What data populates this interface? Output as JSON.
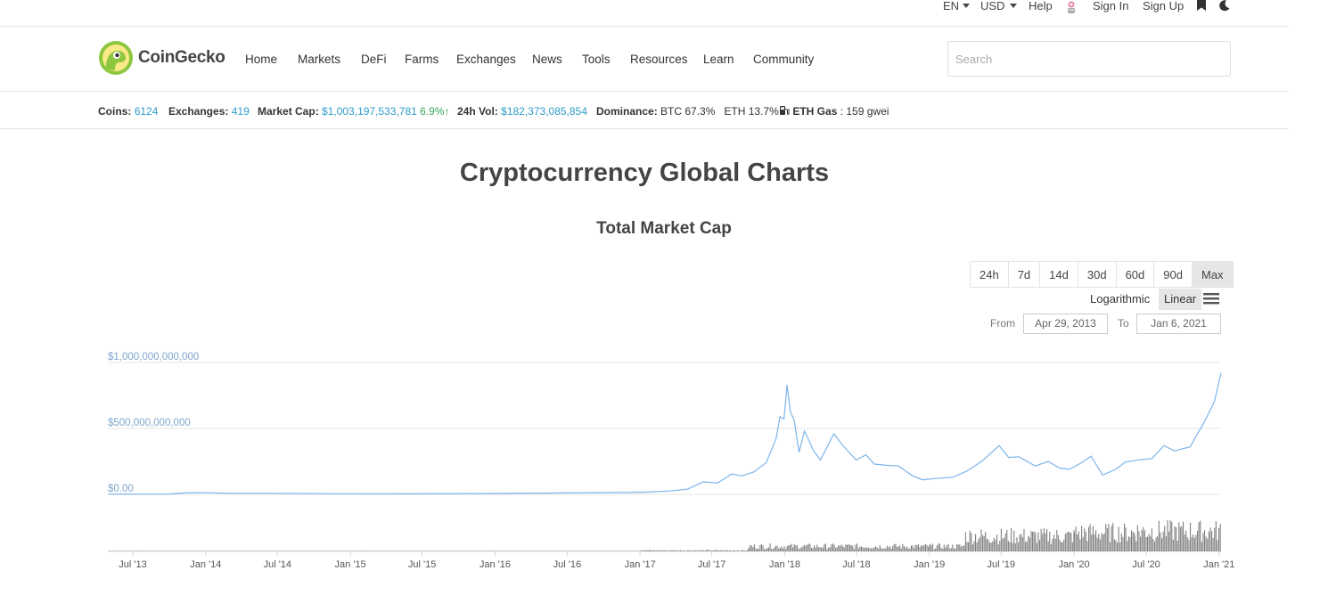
{
  "topbar": {
    "language": "EN",
    "currency": "USD",
    "help": "Help",
    "sign_in": "Sign In",
    "sign_up": "Sign Up"
  },
  "header": {
    "brand": "CoinGecko",
    "nav": [
      "Home",
      "Markets",
      "DeFi",
      "Farms",
      "Exchanges",
      "News",
      "Tools",
      "Resources",
      "Learn",
      "Community"
    ],
    "search_placeholder": "Search"
  },
  "stats": {
    "coins_label": "Coins",
    "coins": "6124",
    "exchanges_label": "Exchanges",
    "exchanges": "419",
    "market_cap_label": "Market Cap",
    "market_cap": "$1,003,197,533,781",
    "market_cap_change": "6.9%",
    "vol_label": "24h Vol",
    "vol": "$182,373,085,854",
    "dominance_label": "Dominance",
    "btc_dom": "BTC 67.3%",
    "eth_dom": "ETH 13.7%",
    "gas_label": "ETH Gas",
    "gas": ": 159 gwei"
  },
  "page": {
    "title": "Cryptocurrency Global Charts",
    "chart_title": "Total Market Cap",
    "ranges": [
      "24h",
      "7d",
      "14d",
      "30d",
      "60d",
      "90d",
      "Max"
    ],
    "active_range": "Max",
    "logarithmic": "Logarithmic",
    "linear": "Linear",
    "from_label": "From",
    "from_date": "Apr 29, 2013",
    "to_label": "To",
    "to_date": "Jan 6, 2021"
  },
  "colors": {
    "accent_blue": "#2f9cc9",
    "positive_green": "#3aa35b",
    "line": "#7cb5ec",
    "volume": "#808080"
  },
  "chart_data": {
    "type": "line",
    "title": "Total Market Cap",
    "x_tick_labels": [
      "Jul '13",
      "Jan '14",
      "Jul '14",
      "Jan '15",
      "Jul '15",
      "Jan '16",
      "Jul '16",
      "Jan '17",
      "Jul '17",
      "Jan '18",
      "Jul '18",
      "Jan '19",
      "Jul '19",
      "Jan '20",
      "Jul '20",
      "Jan '21"
    ],
    "y_tick_labels": [
      "$1,000,000,000,000",
      "$500,000,000,000",
      "$0.00"
    ],
    "ylim": [
      0,
      1000000000000
    ],
    "xlim": [
      "2013-04-29",
      "2021-01-06"
    ],
    "grid": true,
    "series": [
      {
        "type": "line",
        "points": [
          [
            "2013-04-29",
            1.5
          ],
          [
            "2013-10-01",
            2.5
          ],
          [
            "2013-11-20",
            13
          ],
          [
            "2014-01-01",
            12
          ],
          [
            "2014-03-01",
            8
          ],
          [
            "2014-06-01",
            8
          ],
          [
            "2014-12-01",
            5
          ],
          [
            "2015-06-01",
            4
          ],
          [
            "2015-12-01",
            6
          ],
          [
            "2016-06-01",
            10
          ],
          [
            "2016-12-01",
            14
          ],
          [
            "2017-01-15",
            17
          ],
          [
            "2017-03-15",
            25
          ],
          [
            "2017-05-01",
            40
          ],
          [
            "2017-06-10",
            95
          ],
          [
            "2017-07-15",
            85
          ],
          [
            "2017-08-20",
            155
          ],
          [
            "2017-09-15",
            140
          ],
          [
            "2017-10-15",
            170
          ],
          [
            "2017-11-15",
            240
          ],
          [
            "2017-12-10",
            420
          ],
          [
            "2017-12-20",
            590
          ],
          [
            "2017-12-30",
            570
          ],
          [
            "2018-01-07",
            830
          ],
          [
            "2018-01-15",
            630
          ],
          [
            "2018-01-25",
            560
          ],
          [
            "2018-02-06",
            320
          ],
          [
            "2018-02-20",
            480
          ],
          [
            "2018-03-15",
            330
          ],
          [
            "2018-04-01",
            260
          ],
          [
            "2018-05-05",
            460
          ],
          [
            "2018-05-25",
            380
          ],
          [
            "2018-06-30",
            260
          ],
          [
            "2018-07-25",
            300
          ],
          [
            "2018-08-15",
            230
          ],
          [
            "2018-09-15",
            220
          ],
          [
            "2018-10-15",
            215
          ],
          [
            "2018-11-20",
            140
          ],
          [
            "2018-12-15",
            110
          ],
          [
            "2019-01-15",
            120
          ],
          [
            "2019-03-01",
            130
          ],
          [
            "2019-04-05",
            175
          ],
          [
            "2019-05-15",
            255
          ],
          [
            "2019-06-26",
            370
          ],
          [
            "2019-07-20",
            280
          ],
          [
            "2019-08-15",
            285
          ],
          [
            "2019-09-25",
            215
          ],
          [
            "2019-10-28",
            250
          ],
          [
            "2019-11-25",
            200
          ],
          [
            "2019-12-20",
            190
          ],
          [
            "2020-01-20",
            240
          ],
          [
            "2020-02-13",
            290
          ],
          [
            "2020-03-13",
            145
          ],
          [
            "2020-04-15",
            190
          ],
          [
            "2020-05-10",
            245
          ],
          [
            "2020-06-20",
            265
          ],
          [
            "2020-07-15",
            270
          ],
          [
            "2020-08-15",
            370
          ],
          [
            "2020-09-10",
            330
          ],
          [
            "2020-10-20",
            360
          ],
          [
            "2020-11-25",
            550
          ],
          [
            "2020-12-20",
            700
          ],
          [
            "2021-01-06",
            920
          ]
        ],
        "unit": "billion USD"
      },
      {
        "type": "bar",
        "name": "",
        "note_level": "volume panel, relative height",
        "segments": [
          [
            "2013-04-29",
            "2017-01-01",
            0.01
          ],
          [
            "2017-01-01",
            "2017-10-01",
            0.03
          ],
          [
            "2017-10-01",
            "2019-01-01",
            0.15
          ],
          [
            "2019-01-01",
            "2019-04-01",
            0.15
          ],
          [
            "2019-04-01",
            "2020-01-01",
            0.45
          ],
          [
            "2020-01-01",
            "2020-06-01",
            0.55
          ],
          [
            "2020-06-01",
            "2021-01-06",
            0.6
          ]
        ]
      }
    ]
  }
}
